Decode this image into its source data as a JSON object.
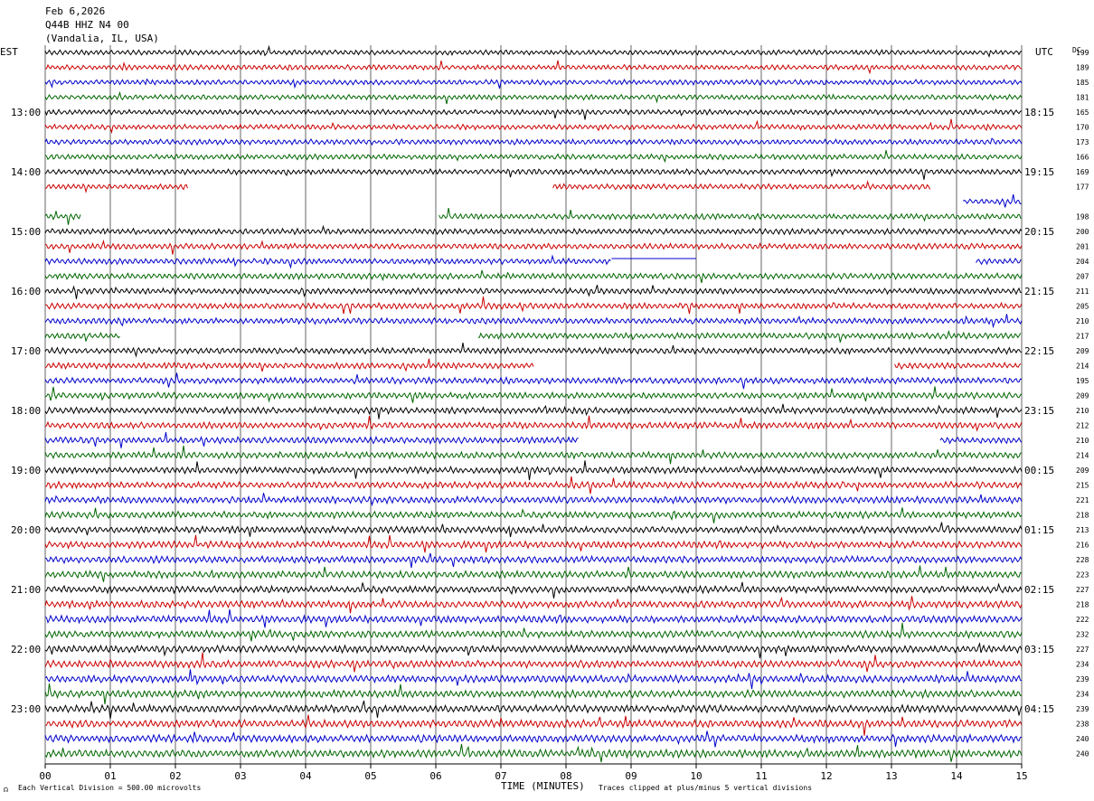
{
  "header": {
    "date": "Feb 6,2026",
    "station": "Q44B HHZ N4 00",
    "location": "(Vandalia, IL, USA)"
  },
  "left_zone_label": "EST",
  "right_zone_label": "UTC",
  "dc_label": "DC",
  "footer": {
    "scale_note": "Each Vertical Division =  500.00 microvolts",
    "x_axis_title": "TIME (MINUTES)",
    "clip_note": "Traces clipped at plus/minus 5 vertical divisions"
  },
  "colors": [
    "#000000",
    "#cc0000",
    "#0000cc",
    "#006600"
  ],
  "chart_data": {
    "type": "line",
    "title": "Q44B HHZ N4 00",
    "xlabel": "TIME (MINUTES)",
    "xlim": [
      0,
      15
    ],
    "x_ticks": [
      "00",
      "01",
      "02",
      "03",
      "04",
      "05",
      "06",
      "07",
      "08",
      "09",
      "10",
      "11",
      "12",
      "13",
      "14",
      "15"
    ],
    "grid": true,
    "left_hour_labels": [
      "13:00",
      "14:00",
      "15:00",
      "16:00",
      "17:00",
      "18:00",
      "19:00",
      "20:00",
      "21:00",
      "22:00",
      "23:00"
    ],
    "right_hour_labels": [
      "18:15",
      "19:15",
      "20:15",
      "21:15",
      "22:15",
      "23:15",
      "00:15",
      "01:15",
      "02:15",
      "03:15",
      "04:15"
    ],
    "rows": [
      {
        "dc": "199",
        "segments": [
          [
            0,
            15
          ]
        ]
      },
      {
        "dc": "189",
        "segments": [
          [
            0,
            15
          ]
        ]
      },
      {
        "dc": "185",
        "segments": [
          [
            0,
            15
          ]
        ]
      },
      {
        "dc": "181",
        "segments": [
          [
            0,
            15
          ]
        ]
      },
      {
        "dc": "165",
        "segments": [
          [
            0,
            15
          ]
        ]
      },
      {
        "dc": "170",
        "segments": [
          [
            0,
            15
          ]
        ]
      },
      {
        "dc": "173",
        "segments": [
          [
            0,
            15
          ]
        ]
      },
      {
        "dc": "166",
        "segments": [
          [
            0,
            15
          ]
        ]
      },
      {
        "dc": "169",
        "segments": [
          [
            0,
            15
          ]
        ]
      },
      {
        "dc": "177",
        "segments": [
          [
            0,
            2.2
          ],
          [
            7.8,
            13.6
          ]
        ]
      },
      {
        "dc": "",
        "segments": [
          [
            14.1,
            15
          ]
        ]
      },
      {
        "dc": "198",
        "segments": [
          [
            0,
            0.55
          ],
          [
            6.05,
            15
          ]
        ]
      },
      {
        "dc": "200",
        "segments": [
          [
            0,
            15
          ]
        ]
      },
      {
        "dc": "201",
        "segments": [
          [
            0,
            15
          ]
        ]
      },
      {
        "dc": "204",
        "segments": [
          [
            0,
            8.7
          ],
          [
            14.3,
            15
          ]
        ]
      },
      {
        "dc": "207",
        "segments": [
          [
            0,
            15
          ]
        ]
      },
      {
        "dc": "211",
        "segments": [
          [
            0,
            15
          ]
        ]
      },
      {
        "dc": "205",
        "segments": [
          [
            0,
            15
          ]
        ]
      },
      {
        "dc": "210",
        "segments": [
          [
            0,
            15
          ]
        ]
      },
      {
        "dc": "217",
        "segments": [
          [
            0,
            1.15
          ],
          [
            6.65,
            15
          ]
        ]
      },
      {
        "dc": "209",
        "segments": [
          [
            0,
            15
          ]
        ]
      },
      {
        "dc": "214",
        "segments": [
          [
            0,
            7.5
          ],
          [
            13.05,
            15
          ]
        ]
      },
      {
        "dc": "195",
        "segments": [
          [
            0,
            15
          ]
        ]
      },
      {
        "dc": "209",
        "segments": [
          [
            0,
            15
          ]
        ]
      },
      {
        "dc": "210",
        "segments": [
          [
            0,
            15
          ]
        ]
      },
      {
        "dc": "212",
        "segments": [
          [
            0,
            15
          ]
        ]
      },
      {
        "dc": "210",
        "segments": [
          [
            0,
            8.2
          ],
          [
            13.75,
            15
          ]
        ]
      },
      {
        "dc": "214",
        "segments": [
          [
            0,
            15
          ]
        ]
      },
      {
        "dc": "209",
        "segments": [
          [
            0,
            15
          ]
        ]
      },
      {
        "dc": "215",
        "segments": [
          [
            0,
            15
          ]
        ]
      },
      {
        "dc": "221",
        "segments": [
          [
            0,
            15
          ]
        ]
      },
      {
        "dc": "218",
        "segments": [
          [
            0,
            15
          ]
        ]
      },
      {
        "dc": "213",
        "segments": [
          [
            0,
            15
          ]
        ]
      },
      {
        "dc": "216",
        "segments": [
          [
            0,
            15
          ]
        ]
      },
      {
        "dc": "228",
        "segments": [
          [
            0,
            15
          ]
        ]
      },
      {
        "dc": "223",
        "segments": [
          [
            0,
            15
          ]
        ]
      },
      {
        "dc": "227",
        "segments": [
          [
            0,
            15
          ]
        ]
      },
      {
        "dc": "218",
        "segments": [
          [
            0,
            15
          ]
        ]
      },
      {
        "dc": "222",
        "segments": [
          [
            0,
            15
          ]
        ]
      },
      {
        "dc": "232",
        "segments": [
          [
            0,
            15
          ]
        ]
      },
      {
        "dc": "227",
        "segments": [
          [
            0,
            15
          ]
        ]
      },
      {
        "dc": "234",
        "segments": [
          [
            0,
            15
          ]
        ]
      },
      {
        "dc": "239",
        "segments": [
          [
            0,
            15
          ]
        ]
      },
      {
        "dc": "234",
        "segments": [
          [
            0,
            15
          ]
        ]
      },
      {
        "dc": "239",
        "segments": [
          [
            0,
            15
          ]
        ]
      },
      {
        "dc": "238",
        "segments": [
          [
            0,
            15
          ]
        ]
      },
      {
        "dc": "240",
        "segments": [
          [
            0,
            15
          ]
        ]
      },
      {
        "dc": "240",
        "segments": [
          [
            0,
            15
          ]
        ]
      }
    ],
    "flat_marks": [
      {
        "row": 14,
        "x": [
          8.7,
          10.0
        ]
      }
    ]
  }
}
